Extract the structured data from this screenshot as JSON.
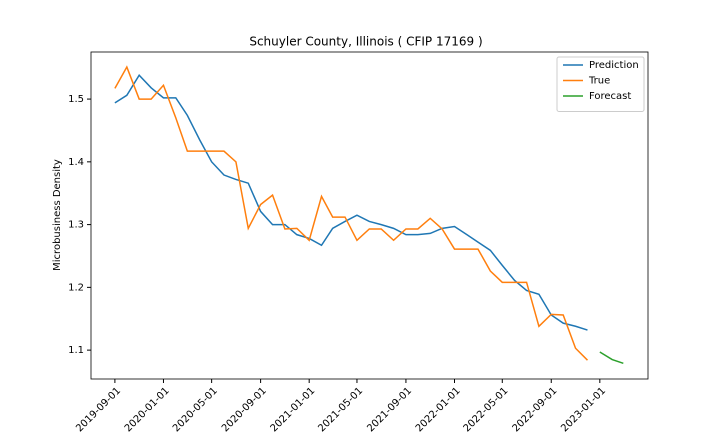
{
  "chart_data": {
    "type": "line",
    "title": "Schuyler County, Illinois ( CFIP 17169 )",
    "y_label": "Microbusiness Density",
    "x": [
      "2019-09-01",
      "2019-10-01",
      "2019-11-01",
      "2019-12-01",
      "2020-01-01",
      "2020-02-01",
      "2020-03-01",
      "2020-04-01",
      "2020-05-01",
      "2020-06-01",
      "2020-07-01",
      "2020-08-01",
      "2020-09-01",
      "2020-10-01",
      "2020-11-01",
      "2020-12-01",
      "2021-01-01",
      "2021-02-01",
      "2021-03-01",
      "2021-04-01",
      "2021-05-01",
      "2021-06-01",
      "2021-07-01",
      "2021-08-01",
      "2021-09-01",
      "2021-10-01",
      "2021-11-01",
      "2021-12-01",
      "2022-01-01",
      "2022-02-01",
      "2022-03-01",
      "2022-04-01",
      "2022-05-01",
      "2022-06-01",
      "2022-07-01",
      "2022-08-01",
      "2022-09-01",
      "2022-10-01",
      "2022-11-01",
      "2022-12-01"
    ],
    "series": [
      {
        "name": "Prediction",
        "color": "#1f77b4",
        "values": [
          1.494,
          1.506,
          1.538,
          1.518,
          1.502,
          1.502,
          1.474,
          1.435,
          1.4,
          1.379,
          1.372,
          1.366,
          1.321,
          1.3,
          1.3,
          1.284,
          1.278,
          1.267,
          1.294,
          1.305,
          1.315,
          1.305,
          1.3,
          1.294,
          1.284,
          1.284,
          1.286,
          1.294,
          1.297,
          1.284,
          1.272,
          1.259,
          1.235,
          1.211,
          1.195,
          1.189,
          1.156,
          1.143,
          1.138,
          1.132
        ]
      },
      {
        "name": "True",
        "color": "#ff7f0e",
        "values": [
          1.517,
          1.551,
          1.5,
          1.5,
          1.522,
          1.47,
          1.417,
          1.417,
          1.417,
          1.417,
          1.4,
          1.294,
          1.332,
          1.347,
          1.293,
          1.294,
          1.275,
          1.345,
          1.312,
          1.312,
          1.275,
          1.293,
          1.293,
          1.275,
          1.293,
          1.293,
          1.31,
          1.293,
          1.261,
          1.261,
          1.261,
          1.226,
          1.208,
          1.208,
          1.208,
          1.138,
          1.157,
          1.156,
          1.103,
          1.084
        ]
      },
      {
        "name": "Forecast",
        "color": "#2ca02c",
        "x": [
          "2023-01-01",
          "2023-02-01",
          "2023-03-01"
        ],
        "values": [
          1.097,
          1.085,
          1.079
        ]
      }
    ],
    "xlim": [
      "2019-07-03",
      "2023-05-02"
    ],
    "xticks": [
      "2019-09-01",
      "2020-01-01",
      "2020-05-01",
      "2020-09-01",
      "2021-01-01",
      "2021-05-01",
      "2021-09-01",
      "2022-01-01",
      "2022-05-01",
      "2022-09-01",
      "2023-01-01"
    ],
    "ylim": [
      1.054,
      1.575
    ],
    "yticks": [
      1.1,
      1.2,
      1.3,
      1.4,
      1.5
    ],
    "legend": "upper right"
  }
}
